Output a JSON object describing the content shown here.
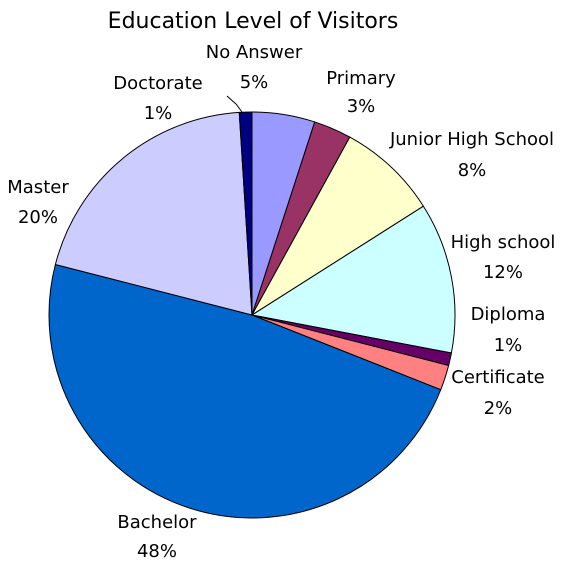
{
  "chart_data": {
    "type": "pie",
    "title": "Education Level of Visitors",
    "slices": [
      {
        "name": "No Answer",
        "value": 5,
        "label": "5%",
        "color": "#9999ff"
      },
      {
        "name": "Primary",
        "value": 3,
        "label": "3%",
        "color": "#993366"
      },
      {
        "name": "Junior High School",
        "value": 8,
        "label": "8%",
        "color": "#ffffcc"
      },
      {
        "name": "High school",
        "value": 12,
        "label": "12%",
        "color": "#ccffff"
      },
      {
        "name": "Diploma",
        "value": 1,
        "label": "1%",
        "color": "#660066"
      },
      {
        "name": "Certificate",
        "value": 2,
        "label": "2%",
        "color": "#ff8080"
      },
      {
        "name": "Bachelor",
        "value": 48,
        "label": "48%",
        "color": "#0066cc"
      },
      {
        "name": "Master",
        "value": 20,
        "label": "20%",
        "color": "#ccccff"
      },
      {
        "name": "Doctorate",
        "value": 1,
        "label": "1%",
        "color": "#000080"
      }
    ]
  }
}
